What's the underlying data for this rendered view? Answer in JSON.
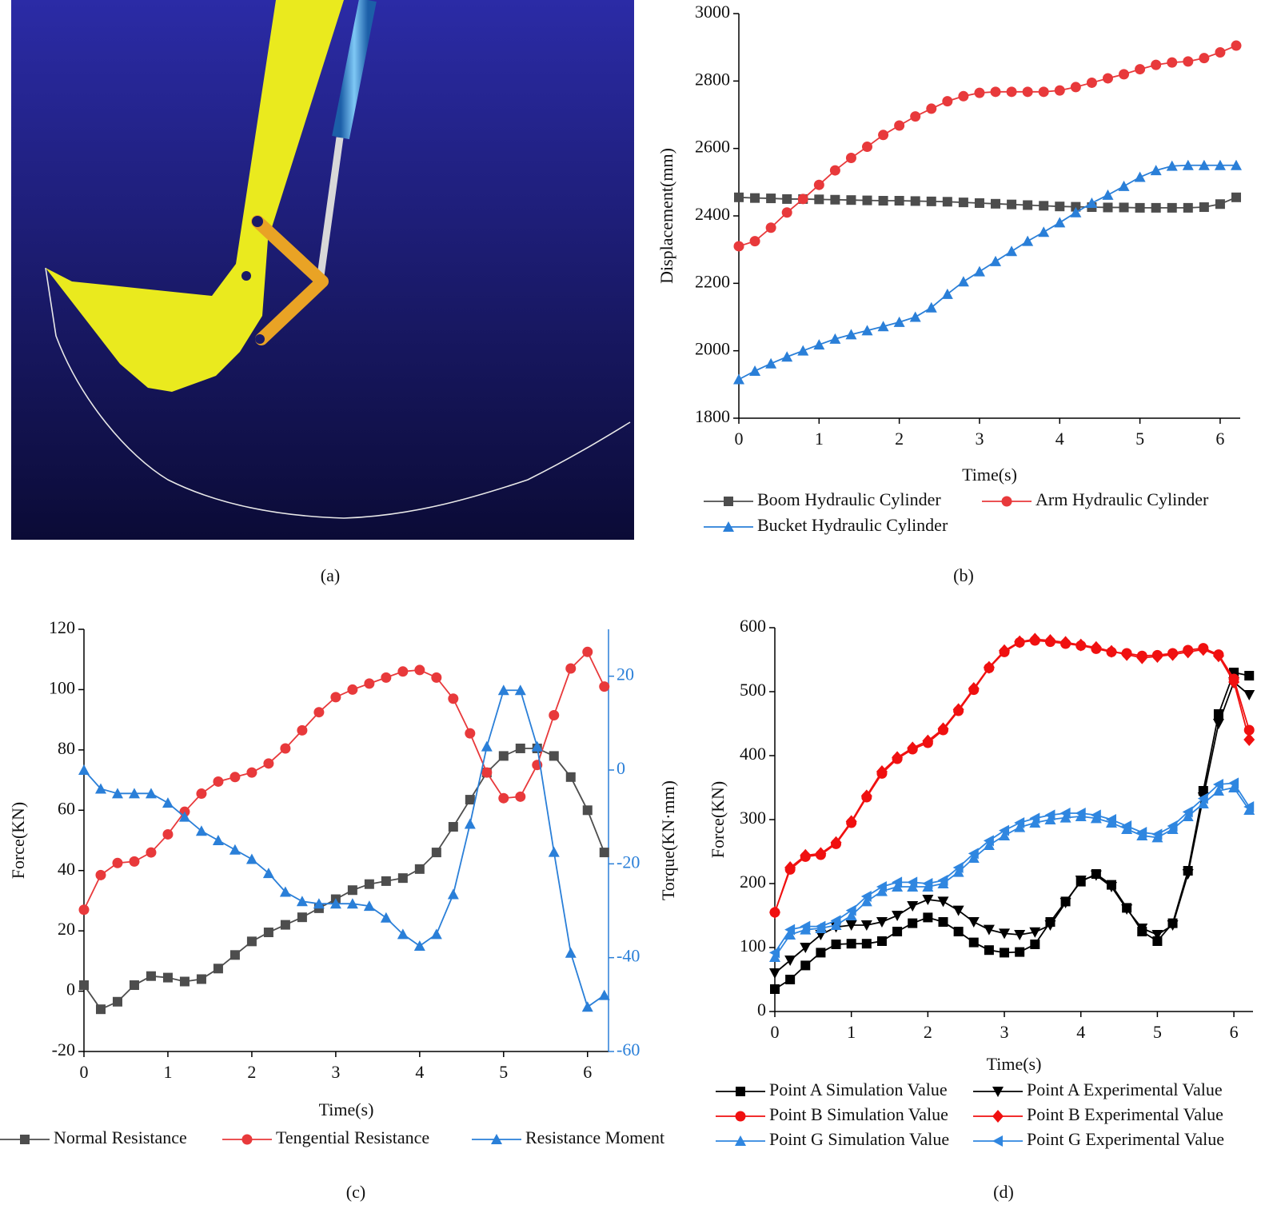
{
  "captions": [
    "(a)",
    "(b)",
    "(c)",
    "(d)"
  ],
  "chart_data": [
    {
      "type": "line",
      "xlabel": "Time(s)",
      "ylabel": "Displacement(mm)",
      "x": [
        0,
        0.2,
        0.4,
        0.6,
        0.8,
        1,
        1.2,
        1.4,
        1.6,
        1.8,
        2,
        2.2,
        2.4,
        2.6,
        2.8,
        3,
        3.2,
        3.4,
        3.6,
        3.8,
        4,
        4.2,
        4.4,
        4.6,
        4.8,
        5,
        5.2,
        5.4,
        5.6,
        5.8,
        6,
        6.2
      ],
      "xlim": [
        0,
        6.25
      ],
      "xticks": [
        0,
        1,
        2,
        3,
        4,
        5,
        6
      ],
      "ylim": [
        1800,
        3000
      ],
      "yticks": [
        1800,
        2000,
        2200,
        2400,
        2600,
        2800,
        3000
      ],
      "series": [
        {
          "name": "Boom Hydraulic Cylinder",
          "color": "#4d4d4d",
          "marker": "square",
          "values": [
            2455,
            2453,
            2452,
            2450,
            2450,
            2449,
            2448,
            2447,
            2446,
            2445,
            2445,
            2444,
            2443,
            2442,
            2440,
            2438,
            2436,
            2434,
            2432,
            2430,
            2428,
            2427,
            2426,
            2425,
            2425,
            2424,
            2424,
            2424,
            2424,
            2426,
            2435,
            2455
          ]
        },
        {
          "name": "Arm Hydraulic Cylinder",
          "color": "#e8393b",
          "marker": "circle",
          "values": [
            2310,
            2325,
            2365,
            2410,
            2450,
            2492,
            2535,
            2572,
            2605,
            2640,
            2668,
            2695,
            2718,
            2740,
            2755,
            2765,
            2768,
            2768,
            2768,
            2768,
            2772,
            2782,
            2795,
            2808,
            2820,
            2835,
            2848,
            2855,
            2858,
            2868,
            2885,
            2905
          ]
        },
        {
          "name": "Bucket Hydraulic Cylinder",
          "color": "#2a7fd8",
          "marker": "triangle",
          "values": [
            1915,
            1940,
            1962,
            1982,
            2000,
            2018,
            2035,
            2048,
            2060,
            2072,
            2085,
            2100,
            2128,
            2168,
            2205,
            2235,
            2265,
            2295,
            2325,
            2352,
            2380,
            2410,
            2438,
            2462,
            2488,
            2515,
            2535,
            2548,
            2550,
            2550,
            2550,
            2550
          ]
        }
      ]
    },
    {
      "type": "line",
      "xlabel": "Time(s)",
      "ylabel": "Force(KN)",
      "y2label": "Torque(KN·mm)",
      "y2_color": "#2a7fd8",
      "x": [
        0,
        0.2,
        0.4,
        0.6,
        0.8,
        1,
        1.2,
        1.4,
        1.6,
        1.8,
        2,
        2.2,
        2.4,
        2.6,
        2.8,
        3,
        3.2,
        3.4,
        3.6,
        3.8,
        4,
        4.2,
        4.4,
        4.6,
        4.8,
        5,
        5.2,
        5.4,
        5.6,
        5.8,
        6,
        6.2
      ],
      "xlim": [
        0,
        6.25
      ],
      "xticks": [
        0,
        1,
        2,
        3,
        4,
        5,
        6
      ],
      "ylim": [
        -20,
        120
      ],
      "yticks": [
        -20,
        0,
        20,
        40,
        60,
        80,
        100,
        120
      ],
      "y2lim": [
        -60,
        30
      ],
      "y2ticks": [
        -60,
        -40,
        -20,
        0,
        20
      ],
      "series": [
        {
          "name": "Normal Resistance",
          "color": "#4d4d4d",
          "marker": "square",
          "values": [
            2,
            -6,
            -3.5,
            2,
            5,
            4.5,
            3.2,
            4,
            7.5,
            12,
            16.5,
            19.5,
            22,
            24.5,
            27.5,
            30.5,
            33.5,
            35.5,
            36.5,
            37.5,
            40.5,
            46,
            54.5,
            63.5,
            72.5,
            78,
            80.5,
            80.5,
            78,
            71,
            60,
            46
          ]
        },
        {
          "name": "Tengential Resistance",
          "color": "#e8393b",
          "marker": "circle",
          "values": [
            27,
            38.5,
            42.5,
            43,
            46,
            52,
            59.5,
            65.5,
            69.5,
            71,
            72.5,
            75.5,
            80.5,
            86.5,
            92.5,
            97.5,
            100,
            102,
            104,
            106,
            106.5,
            104,
            97,
            85.5,
            72.5,
            64,
            64.5,
            75,
            91.5,
            107,
            112.5,
            101
          ]
        },
        {
          "name": "Resistance Moment",
          "color": "#2a7fd8",
          "marker": "triangle",
          "axis": "y2",
          "values": [
            0,
            -4,
            -5,
            -5,
            -5,
            -7,
            -10,
            -13,
            -15,
            -17,
            -19,
            -22,
            -26,
            -28,
            -28.5,
            -28.5,
            -28.5,
            -29,
            -31.5,
            -35,
            -37.5,
            -35,
            -26.5,
            -11.5,
            5,
            17,
            17,
            5,
            -17.5,
            -39,
            -50.5,
            -48
          ]
        }
      ]
    },
    {
      "type": "line",
      "xlabel": "Time(s)",
      "ylabel": "Force(KN)",
      "x": [
        0,
        0.2,
        0.4,
        0.6,
        0.8,
        1,
        1.2,
        1.4,
        1.6,
        1.8,
        2,
        2.2,
        2.4,
        2.6,
        2.8,
        3,
        3.2,
        3.4,
        3.6,
        3.8,
        4,
        4.2,
        4.4,
        4.6,
        4.8,
        5,
        5.2,
        5.4,
        5.6,
        5.8,
        6,
        6.2
      ],
      "xlim": [
        0,
        6.25
      ],
      "xticks": [
        0,
        1,
        2,
        3,
        4,
        5,
        6
      ],
      "ylim": [
        0,
        600
      ],
      "yticks": [
        0,
        100,
        200,
        300,
        400,
        500,
        600
      ],
      "series": [
        {
          "name": "Point A Simulation Value",
          "color": "#000000",
          "marker": "square",
          "values": [
            35,
            50,
            72,
            92,
            105,
            106,
            106,
            110,
            125,
            138,
            147,
            140,
            125,
            108,
            96,
            92,
            93,
            105,
            140,
            172,
            203,
            215,
            198,
            162,
            125,
            110,
            138,
            220,
            345,
            465,
            530,
            525
          ]
        },
        {
          "name": "Point A Experimental Value",
          "color": "#000000",
          "marker": "down-triangle",
          "values": [
            60,
            80,
            100,
            120,
            132,
            135,
            135,
            140,
            150,
            165,
            175,
            172,
            158,
            140,
            128,
            122,
            120,
            124,
            135,
            170,
            205,
            213,
            195,
            160,
            130,
            120,
            135,
            215,
            335,
            450,
            515,
            495
          ]
        },
        {
          "name": "Point B Simulation Value",
          "color": "#f01010",
          "marker": "circle",
          "values": [
            155,
            222,
            242,
            245,
            262,
            295,
            335,
            372,
            395,
            410,
            420,
            440,
            470,
            503,
            537,
            562,
            577,
            580,
            578,
            575,
            572,
            567,
            562,
            560,
            556,
            557,
            560,
            565,
            568,
            558,
            520,
            440
          ]
        },
        {
          "name": "Point B Experimental Value",
          "color": "#f01010",
          "marker": "diamond",
          "values": [
            155,
            225,
            244,
            247,
            264,
            297,
            337,
            375,
            397,
            412,
            423,
            442,
            472,
            505,
            538,
            564,
            578,
            582,
            580,
            577,
            573,
            569,
            563,
            558,
            553,
            555,
            558,
            562,
            566,
            556,
            515,
            425
          ]
        },
        {
          "name": "Point G Simulation Value",
          "color": "#2f86e0",
          "marker": "triangle",
          "values": [
            85,
            120,
            128,
            130,
            135,
            150,
            172,
            188,
            195,
            195,
            195,
            200,
            218,
            240,
            260,
            275,
            288,
            295,
            300,
            303,
            305,
            302,
            295,
            285,
            275,
            272,
            285,
            305,
            325,
            345,
            350,
            315
          ]
        },
        {
          "name": "Point G Experimental Value",
          "color": "#2f86e0",
          "marker": "left-triangle",
          "values": [
            92,
            128,
            133,
            133,
            142,
            158,
            180,
            195,
            202,
            202,
            200,
            205,
            225,
            247,
            267,
            283,
            295,
            302,
            307,
            310,
            310,
            307,
            300,
            290,
            280,
            277,
            290,
            312,
            333,
            355,
            357,
            320
          ]
        }
      ]
    }
  ]
}
